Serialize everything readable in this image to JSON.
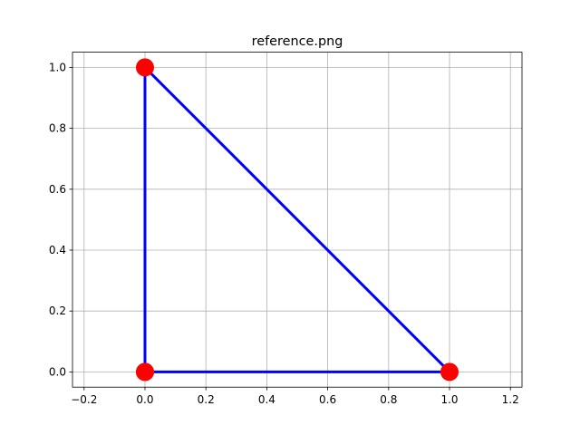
{
  "chart_data": {
    "type": "line",
    "title": "reference.png",
    "x": [
      0,
      1,
      0,
      0
    ],
    "series": [
      {
        "color": "#0000ff",
        "marker_color": "#ff0000",
        "values": [
          0,
          0,
          1,
          0
        ]
      }
    ],
    "xlim": [
      -0.238,
      1.238
    ],
    "xticks": [
      {
        "value": -0.2,
        "label": "−0.2"
      },
      {
        "value": 0,
        "label": "0.0"
      },
      0.2,
      0.4,
      0.6,
      0.8,
      {
        "value": 1,
        "label": "1.0"
      },
      1.2
    ],
    "ylim": [
      -0.05,
      1.05
    ],
    "yticks": [
      {
        "value": 0,
        "label": "0.0"
      },
      0.2,
      0.4,
      0.6,
      0.8,
      {
        "value": 1,
        "label": "1.0"
      }
    ],
    "grid": true
  }
}
